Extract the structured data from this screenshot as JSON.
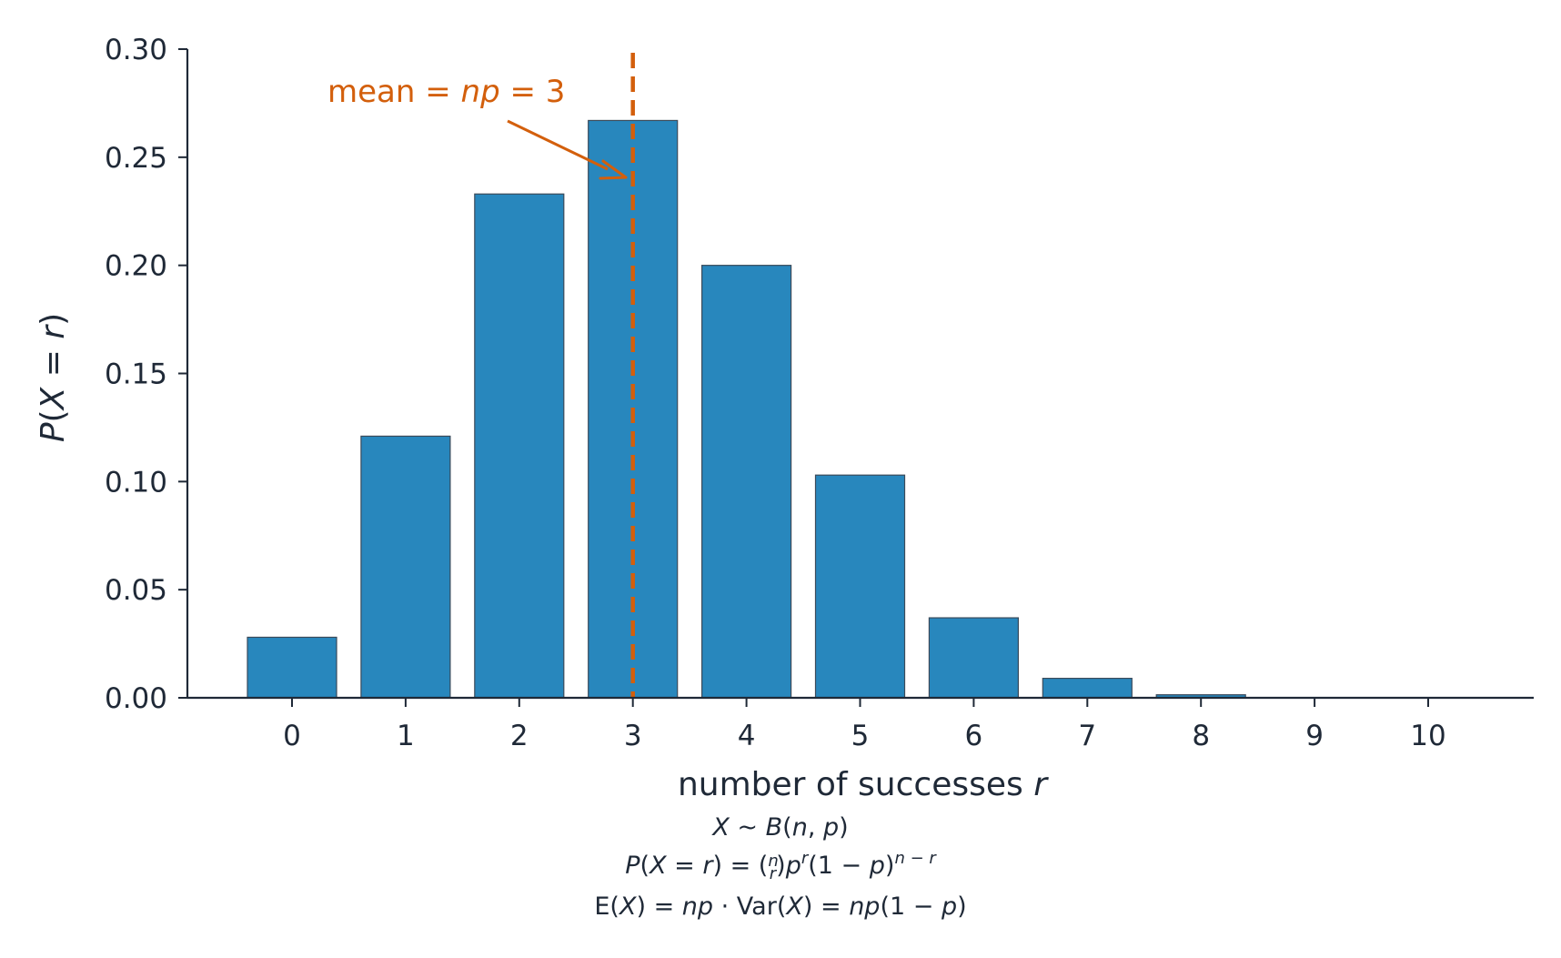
{
  "chart_data": {
    "type": "bar",
    "categories": [
      "0",
      "1",
      "2",
      "3",
      "4",
      "5",
      "6",
      "7",
      "8",
      "9",
      "10"
    ],
    "x": [
      0,
      1,
      2,
      3,
      4,
      5,
      6,
      7,
      8,
      9,
      10
    ],
    "values": [
      0.028,
      0.121,
      0.233,
      0.267,
      0.2,
      0.103,
      0.037,
      0.009,
      0.0014,
      0.0001,
      0.0
    ],
    "xlabel": "number of successes r",
    "ylabel": "P(X = r)",
    "ylim": [
      0,
      0.3
    ],
    "yticks": [
      "0.00",
      "0.05",
      "0.10",
      "0.15",
      "0.20",
      "0.25",
      "0.30"
    ],
    "ytick_values": [
      0,
      0.05,
      0.1,
      0.15,
      0.2,
      0.25,
      0.3
    ],
    "grid": false,
    "mean_line": {
      "x": 3,
      "style": "dashed",
      "label": "mean = np = 3"
    },
    "formulas": [
      "X ~ B(n, p)",
      "P(X = r) = (n r) p^r (1 − p)^(n − r)",
      "E(X) = np · Var(X) = np(1 − p)"
    ],
    "colors": {
      "bar": "#2887bd",
      "bar_edge": "#3a4a5a",
      "axis": "#1f2937",
      "mean": "#d35f0c"
    }
  }
}
